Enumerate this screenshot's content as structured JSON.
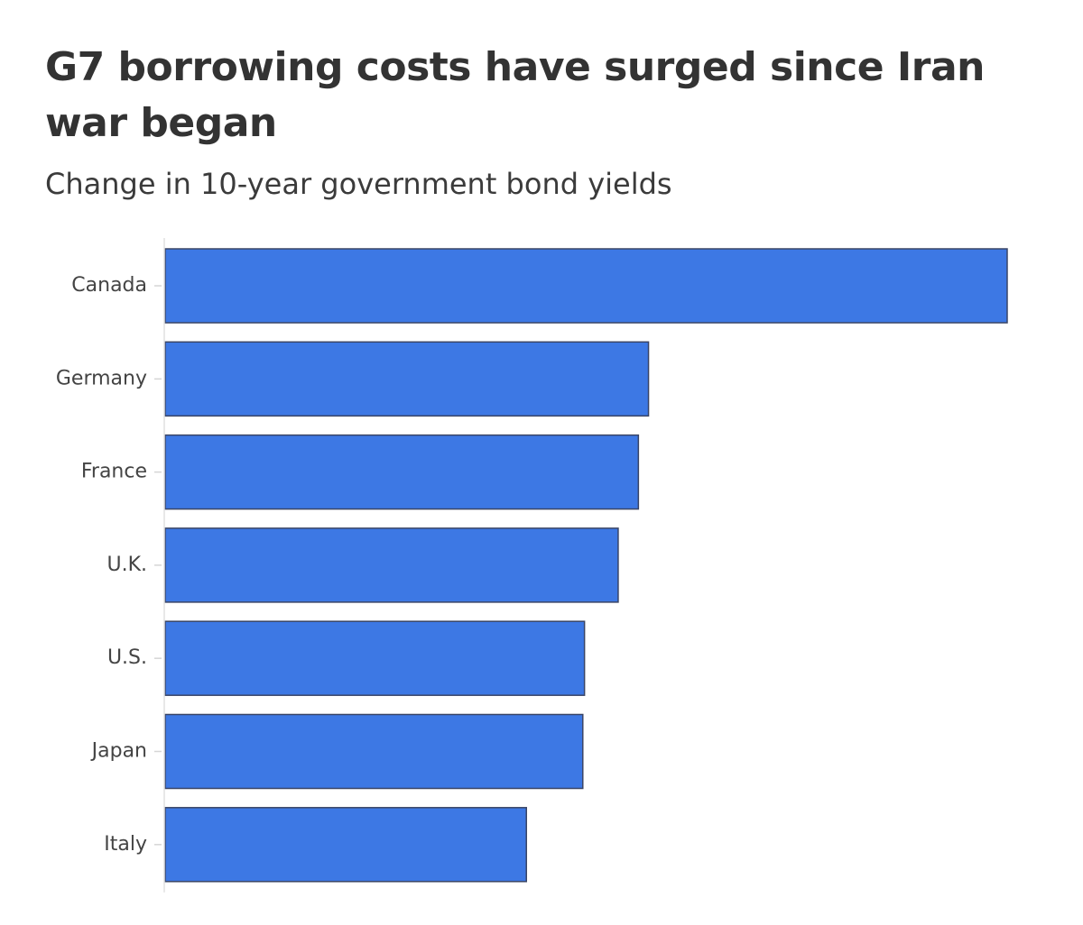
{
  "chart_data": {
    "type": "bar",
    "orientation": "horizontal",
    "title": "G7 borrowing costs have surged since Iran war began",
    "subtitle": "Change in 10-year government bond yields",
    "categories": [
      "Canada",
      "Germany",
      "France",
      "U.K.",
      "U.S.",
      "Japan",
      "Italy"
    ],
    "values": [
      100,
      57.4,
      56.2,
      53.8,
      49.8,
      49.6,
      42.9
    ],
    "xlim": [
      0,
      100
    ],
    "grid": false,
    "legend": "none",
    "colors": {
      "bar_fill": "#3d78e4",
      "bar_stroke": "#3a4566",
      "axis": "#e0e0e0",
      "text": "#333333"
    }
  }
}
